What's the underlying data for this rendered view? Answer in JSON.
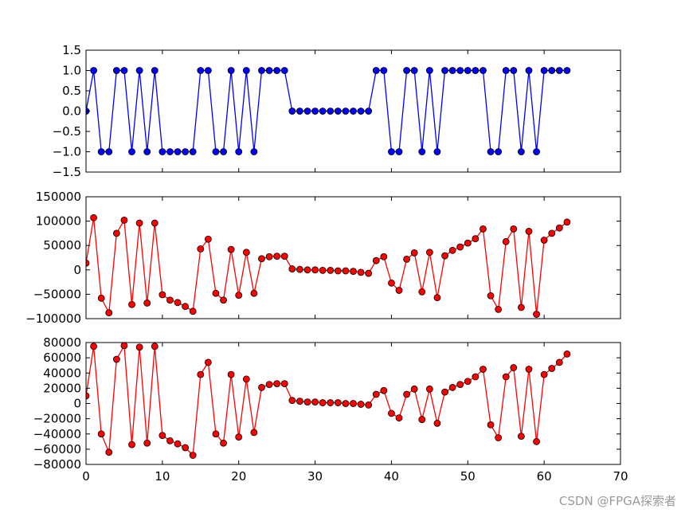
{
  "chart_data": [
    {
      "type": "line",
      "marker": "circle",
      "color": "#0000ff",
      "marker_face": "#0000ff",
      "x": [
        0,
        1,
        2,
        3,
        4,
        5,
        6,
        7,
        8,
        9,
        10,
        11,
        12,
        13,
        14,
        15,
        16,
        17,
        18,
        19,
        20,
        21,
        22,
        23,
        24,
        25,
        26,
        27,
        28,
        29,
        30,
        31,
        32,
        33,
        34,
        35,
        36,
        37,
        38,
        39,
        40,
        41,
        42,
        43,
        44,
        45,
        46,
        47,
        48,
        49,
        50,
        51,
        52,
        53,
        54,
        55,
        56,
        57,
        58,
        59,
        60,
        61,
        62,
        63
      ],
      "values": [
        0,
        1,
        -1,
        -1,
        1,
        1,
        -1,
        1,
        -1,
        1,
        -1,
        -1,
        -1,
        -1,
        -1,
        1,
        1,
        -1,
        -1,
        1,
        -1,
        1,
        -1,
        1,
        1,
        1,
        1,
        0,
        0,
        0,
        0,
        0,
        0,
        0,
        0,
        0,
        0,
        0,
        1,
        1,
        -1,
        -1,
        1,
        1,
        -1,
        1,
        -1,
        1,
        1,
        1,
        1,
        1,
        1,
        -1,
        -1,
        1,
        1,
        -1,
        1,
        -1,
        1,
        1,
        1,
        1
      ],
      "xlim": [
        0,
        70
      ],
      "ylim": [
        -1.5,
        1.5
      ],
      "yticks": [
        -1.5,
        -1.0,
        -0.5,
        0.0,
        0.5,
        1.0,
        1.5
      ],
      "ytick_labels": [
        "−1.5",
        "−1.0",
        "−0.5",
        "0.0",
        "0.5",
        "1.0",
        "1.5"
      ]
    },
    {
      "type": "line",
      "marker": "circle",
      "color": "#ff0000",
      "marker_face": "#ff0000",
      "x": [
        0,
        1,
        2,
        3,
        4,
        5,
        6,
        7,
        8,
        9,
        10,
        11,
        12,
        13,
        14,
        15,
        16,
        17,
        18,
        19,
        20,
        21,
        22,
        23,
        24,
        25,
        26,
        27,
        28,
        29,
        30,
        31,
        32,
        33,
        34,
        35,
        36,
        37,
        38,
        39,
        40,
        41,
        42,
        43,
        44,
        45,
        46,
        47,
        48,
        49,
        50,
        51,
        52,
        53,
        54,
        55,
        56,
        57,
        58,
        59,
        60,
        61,
        62,
        63
      ],
      "values": [
        14000,
        107000,
        -58000,
        -88000,
        75000,
        102000,
        -71000,
        96000,
        -68000,
        96000,
        -51000,
        -62000,
        -67000,
        -75000,
        -85000,
        43000,
        63000,
        -48000,
        -62000,
        42000,
        -52000,
        36000,
        -48000,
        23000,
        27000,
        28000,
        28000,
        2000,
        1000,
        0,
        0,
        -1000,
        -1000,
        -2000,
        -2000,
        -3000,
        -5000,
        -7000,
        19000,
        27000,
        -27000,
        -42000,
        22000,
        35000,
        -45000,
        36000,
        -57000,
        29000,
        40000,
        47000,
        55000,
        64000,
        84000,
        -53000,
        -81000,
        58000,
        84000,
        -77000,
        79000,
        -91000,
        61000,
        75000,
        86000,
        98000
      ],
      "xlim": [
        0,
        70
      ],
      "ylim": [
        -100000,
        150000
      ],
      "yticks": [
        -100000,
        -50000,
        0,
        50000,
        100000,
        150000
      ],
      "ytick_labels": [
        "−100000",
        "−50000",
        "0",
        "50000",
        "100000",
        "150000"
      ]
    },
    {
      "type": "line",
      "marker": "circle",
      "color": "#ff0000",
      "marker_face": "#ff0000",
      "x": [
        0,
        1,
        2,
        3,
        4,
        5,
        6,
        7,
        8,
        9,
        10,
        11,
        12,
        13,
        14,
        15,
        16,
        17,
        18,
        19,
        20,
        21,
        22,
        23,
        24,
        25,
        26,
        27,
        28,
        29,
        30,
        31,
        32,
        33,
        34,
        35,
        36,
        37,
        38,
        39,
        40,
        41,
        42,
        43,
        44,
        45,
        46,
        47,
        48,
        49,
        50,
        51,
        52,
        53,
        54,
        55,
        56,
        57,
        58,
        59,
        60,
        61,
        62,
        63
      ],
      "values": [
        10000,
        75000,
        -40000,
        -64000,
        58000,
        76000,
        -54000,
        74000,
        -52000,
        75000,
        -42000,
        -49000,
        -53000,
        -58000,
        -68000,
        38000,
        54000,
        -40000,
        -52000,
        38000,
        -44000,
        32000,
        -38000,
        21000,
        25000,
        26000,
        26000,
        4000,
        3000,
        2000,
        2000,
        1000,
        1000,
        1000,
        0,
        0,
        -1000,
        -2000,
        12000,
        17000,
        -13000,
        -19000,
        12000,
        19000,
        -21000,
        19000,
        -26000,
        15000,
        21000,
        25000,
        29000,
        35000,
        45000,
        -28000,
        -45000,
        35000,
        47000,
        -43000,
        45000,
        -50000,
        38000,
        46000,
        54000,
        65000
      ],
      "xlim": [
        0,
        70
      ],
      "ylim": [
        -80000,
        80000
      ],
      "yticks": [
        -80000,
        -60000,
        -40000,
        -20000,
        0,
        20000,
        40000,
        60000,
        80000
      ],
      "ytick_labels": [
        "−80000",
        "−60000",
        "−40000",
        "−20000",
        "0",
        "20000",
        "40000",
        "60000",
        "80000"
      ],
      "xticks": [
        0,
        10,
        20,
        30,
        40,
        50,
        60,
        70
      ],
      "xtick_labels": [
        "0",
        "10",
        "20",
        "30",
        "40",
        "50",
        "60",
        "70"
      ]
    }
  ],
  "watermark": "CSDN @FPGA探索者"
}
